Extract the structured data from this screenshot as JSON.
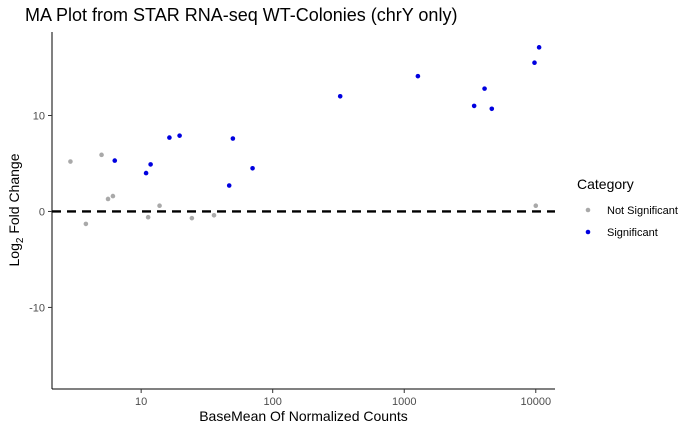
{
  "chart_data": {
    "type": "scatter",
    "title": "MA Plot from STAR RNA-seq WT-Colonies (chrY only)",
    "xlabel": "BaseMean Of Normalized Counts",
    "ylabel_prefix": "Log",
    "ylabel_subscript": "2",
    "ylabel_suffix": " Fold Change",
    "x_scale": "log10",
    "xlim": [
      2.1,
      14000
    ],
    "ylim": [
      -18.5,
      18.7
    ],
    "x_ticks": [
      10,
      100,
      1000,
      10000
    ],
    "x_tick_labels": [
      "10",
      "100",
      "1000",
      "10000"
    ],
    "y_ticks": [
      -10,
      0,
      10
    ],
    "y_tick_labels": [
      "-10",
      "0",
      "10"
    ],
    "reference_line": {
      "y": 0,
      "style": "dashed",
      "color": "#000000"
    },
    "grid": false,
    "legend": {
      "title": "Category",
      "position": "right",
      "entries": [
        {
          "label": "Not Significant",
          "color": "#a9a9a9"
        },
        {
          "label": "Significant",
          "color": "#0000e0"
        }
      ]
    },
    "series": [
      {
        "name": "Not Significant",
        "color": "#a9a9a9",
        "points": [
          {
            "x": 2.9,
            "y": 5.2
          },
          {
            "x": 3.8,
            "y": -1.3
          },
          {
            "x": 5.0,
            "y": 5.9
          },
          {
            "x": 5.6,
            "y": 1.3
          },
          {
            "x": 6.1,
            "y": 1.6
          },
          {
            "x": 11.3,
            "y": -0.6
          },
          {
            "x": 13.8,
            "y": 0.6
          },
          {
            "x": 24.3,
            "y": -0.7
          },
          {
            "x": 35.8,
            "y": -0.4
          },
          {
            "x": 10000,
            "y": 0.6
          }
        ]
      },
      {
        "name": "Significant",
        "color": "#0000e0",
        "points": [
          {
            "x": 6.3,
            "y": 5.3
          },
          {
            "x": 10.9,
            "y": 4.0
          },
          {
            "x": 11.8,
            "y": 4.9
          },
          {
            "x": 16.4,
            "y": 7.7
          },
          {
            "x": 19.6,
            "y": 7.9
          },
          {
            "x": 46.7,
            "y": 2.7
          },
          {
            "x": 49.8,
            "y": 7.6
          },
          {
            "x": 70.3,
            "y": 4.5
          },
          {
            "x": 326,
            "y": 12.0
          },
          {
            "x": 1270,
            "y": 14.1
          },
          {
            "x": 3400,
            "y": 11.0
          },
          {
            "x": 4080,
            "y": 12.8
          },
          {
            "x": 4630,
            "y": 10.7
          },
          {
            "x": 9780,
            "y": 15.5
          },
          {
            "x": 10600,
            "y": 17.1
          }
        ]
      }
    ]
  }
}
